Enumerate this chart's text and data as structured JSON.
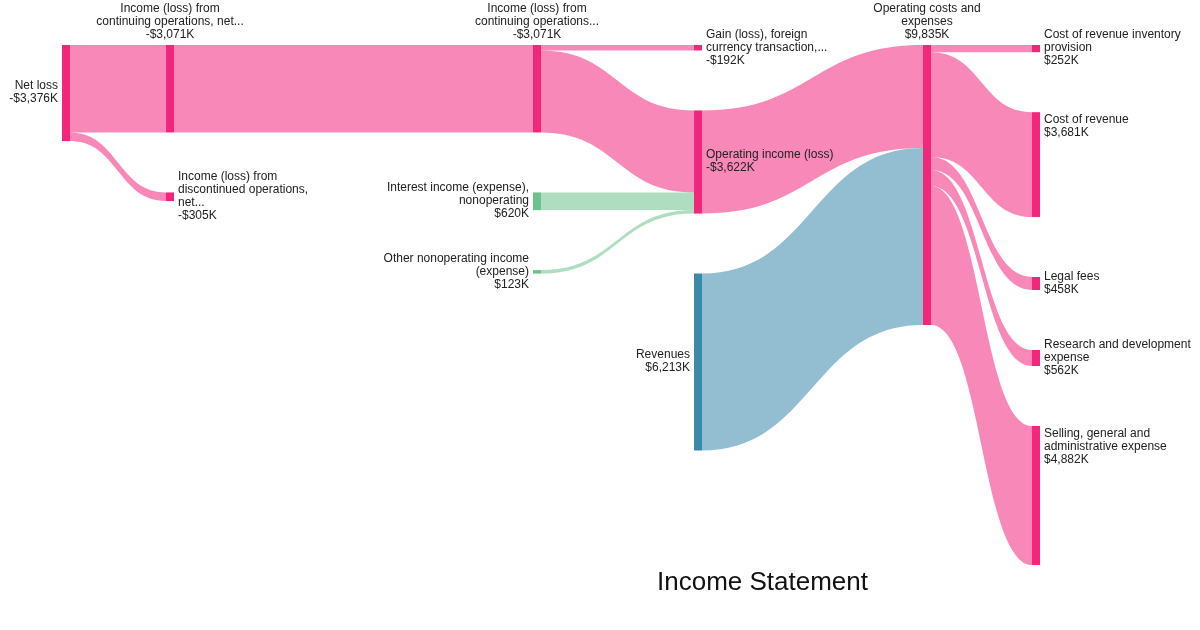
{
  "chart_data": {
    "type": "other",
    "title": "Income Statement",
    "categories": [
      "Net loss",
      "Income (loss) from continuing operations, net...",
      "Income (loss) from discontinued operations, net...",
      "Income (loss) from continuing operations...",
      "Interest income (expense), nonoperating",
      "Other nonoperating income (expense)",
      "Gain (loss), foreign currency transaction,...",
      "Operating income (loss)",
      "Revenues",
      "Operating costs and expenses",
      "Cost of revenue inventory provision",
      "Cost of revenue",
      "Legal fees",
      "Research and development expense",
      "Selling, general and administrative expense"
    ],
    "values": [
      -3376,
      -3071,
      -305,
      -3071,
      620,
      123,
      -192,
      -3622,
      6213,
      9835,
      252,
      3681,
      458,
      562,
      4882
    ],
    "value_labels": [
      "-$3,376K",
      "-$3,071K",
      "-$305K",
      "-$3,071K",
      "$620K",
      "$123K",
      "-$192K",
      "-$3,622K",
      "$6,213K",
      "$9,835K",
      "$252K",
      "$3,681K",
      "$458K",
      "$562K",
      "$4,882K"
    ],
    "colors": [
      "#f2267b",
      "#f2267b",
      "#f2267b",
      "#f2267b",
      "#6cc28a",
      "#6cc28a",
      "#f2267b",
      "#f2267b",
      "#3b89ab",
      "#f2267b",
      "#f2267b",
      "#f2267b",
      "#f2267b",
      "#f2267b",
      "#f2267b"
    ],
    "cells": [
      [
        null,
        true,
        true,
        null,
        null,
        null,
        null,
        null,
        null,
        null,
        null,
        null,
        null,
        null,
        null
      ],
      [
        null,
        null,
        null,
        true,
        null,
        null,
        null,
        null,
        null,
        null,
        null,
        null,
        null,
        null,
        null
      ],
      [
        null,
        null,
        null,
        null,
        null,
        null,
        null,
        null,
        null,
        null,
        null,
        null,
        null,
        null,
        null
      ],
      [
        null,
        null,
        null,
        null,
        null,
        null,
        true,
        true,
        null,
        null,
        null,
        null,
        null,
        null,
        null
      ],
      [
        null,
        null,
        null,
        null,
        null,
        null,
        null,
        true,
        null,
        null,
        null,
        null,
        null,
        null,
        null
      ],
      [
        null,
        null,
        null,
        null,
        null,
        null,
        null,
        true,
        null,
        null,
        null,
        null,
        null,
        null,
        null
      ],
      [
        null,
        null,
        null,
        null,
        null,
        null,
        null,
        null,
        null,
        null,
        null,
        null,
        null,
        null,
        null
      ],
      [
        null,
        null,
        null,
        null,
        null,
        null,
        null,
        null,
        null,
        true,
        null,
        null,
        null,
        null,
        null
      ],
      [
        null,
        null,
        null,
        null,
        null,
        null,
        null,
        null,
        null,
        true,
        null,
        null,
        null,
        null,
        null
      ],
      [
        null,
        null,
        null,
        null,
        null,
        null,
        null,
        null,
        null,
        null,
        true,
        true,
        true,
        true,
        true
      ],
      [
        null,
        null,
        null,
        null,
        null,
        null,
        null,
        null,
        null,
        null,
        null,
        null,
        null,
        null,
        null
      ],
      [
        null,
        null,
        null,
        null,
        null,
        null,
        null,
        null,
        null,
        null,
        null,
        null,
        null,
        null,
        null
      ],
      [
        null,
        null,
        null,
        null,
        null,
        null,
        null,
        null,
        null,
        null,
        null,
        null,
        null,
        null,
        null
      ],
      [
        null,
        null,
        null,
        null,
        null,
        null,
        null,
        null,
        null,
        null,
        null,
        null,
        null,
        null,
        null
      ],
      [
        null,
        null,
        null,
        null,
        null,
        null,
        null,
        null,
        null,
        null,
        null,
        null,
        null,
        null,
        null
      ]
    ]
  }
}
